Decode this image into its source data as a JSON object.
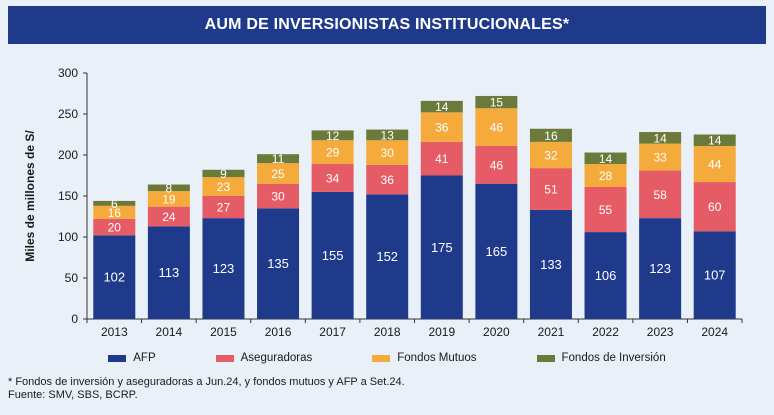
{
  "title": "AUM DE INVERSIONISTAS INSTITUCIONALES*",
  "chart_data": {
    "type": "bar",
    "stacked": true,
    "categories": [
      "2013",
      "2014",
      "2015",
      "2016",
      "2017",
      "2018",
      "2019",
      "2020",
      "2021",
      "2022",
      "2023",
      "2024"
    ],
    "series": [
      {
        "name": "AFP",
        "color": "#1f3a8a",
        "values": [
          102,
          113,
          123,
          135,
          155,
          152,
          175,
          165,
          133,
          106,
          123,
          107
        ]
      },
      {
        "name": "Aseguradoras",
        "color": "#e65c66",
        "values": [
          20,
          24,
          27,
          30,
          34,
          36,
          41,
          46,
          51,
          55,
          58,
          60
        ]
      },
      {
        "name": "Fondos Mutuos",
        "color": "#f5ab3c",
        "values": [
          16,
          19,
          23,
          25,
          29,
          30,
          36,
          46,
          32,
          28,
          33,
          44
        ]
      },
      {
        "name": "Fondos de Inversión",
        "color": "#6b7a3a",
        "values": [
          6,
          8,
          9,
          11,
          12,
          13,
          14,
          15,
          16,
          14,
          14,
          14
        ]
      }
    ],
    "ylabel": "Miles de millones de S/",
    "xlabel": "",
    "ylim": [
      0,
      300
    ],
    "yticks": [
      0,
      50,
      100,
      150,
      200,
      250,
      300
    ],
    "grid": false,
    "legend_position": "bottom"
  },
  "footnote": {
    "line1": "* Fondos de inversión y aseguradoras a Jun.24, y fondos mutuos y AFP a Set.24.",
    "line2": "Fuente: SMV, SBS, BCRP."
  }
}
